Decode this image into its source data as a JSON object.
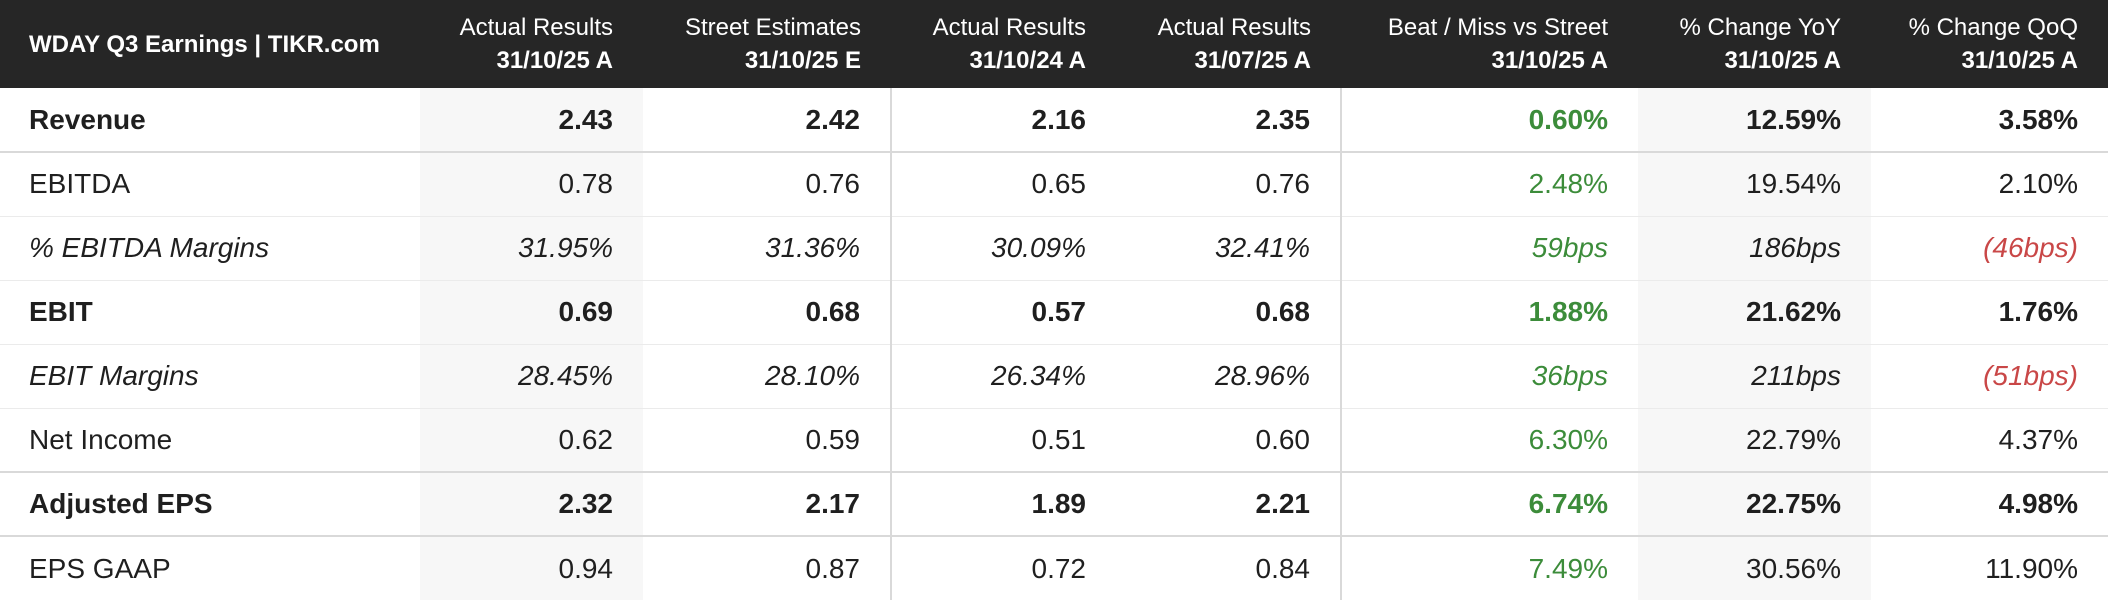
{
  "table": {
    "title": "WDAY Q3 Earnings | TIKR.com",
    "columns": [
      {
        "line1": "Actual Results",
        "line2": "31/10/25 A"
      },
      {
        "line1": "Street Estimates",
        "line2": "31/10/25 E"
      },
      {
        "line1": "Actual Results",
        "line2": "31/10/24 A"
      },
      {
        "line1": "Actual Results",
        "line2": "31/07/25 A"
      },
      {
        "line1": "Beat / Miss vs Street",
        "line2": "31/10/25 A"
      },
      {
        "line1": "% Change YoY",
        "line2": "31/10/25 A"
      },
      {
        "line1": "% Change QoQ",
        "line2": "31/10/25 A"
      }
    ],
    "rows": [
      {
        "label": "Revenue",
        "values": [
          "2.43",
          "2.42",
          "2.16",
          "2.35",
          "0.60%",
          "12.59%",
          "3.58%"
        ]
      },
      {
        "label": "EBITDA",
        "values": [
          "0.78",
          "0.76",
          "0.65",
          "0.76",
          "2.48%",
          "19.54%",
          "2.10%"
        ]
      },
      {
        "label": "% EBITDA Margins",
        "values": [
          "31.95%",
          "31.36%",
          "30.09%",
          "32.41%",
          "59bps",
          "186bps",
          "(46bps)"
        ]
      },
      {
        "label": "EBIT",
        "values": [
          "0.69",
          "0.68",
          "0.57",
          "0.68",
          "1.88%",
          "21.62%",
          "1.76%"
        ]
      },
      {
        "label": "EBIT Margins",
        "values": [
          "28.45%",
          "28.10%",
          "26.34%",
          "28.96%",
          "36bps",
          "211bps",
          "(51bps)"
        ]
      },
      {
        "label": "Net Income",
        "values": [
          "0.62",
          "0.59",
          "0.51",
          "0.60",
          "6.30%",
          "22.79%",
          "4.37%"
        ]
      },
      {
        "label": "Adjusted EPS",
        "values": [
          "2.32",
          "2.17",
          "1.89",
          "2.21",
          "6.74%",
          "22.75%",
          "4.98%"
        ]
      },
      {
        "label": "EPS GAAP",
        "values": [
          "0.94",
          "0.87",
          "0.72",
          "0.84",
          "7.49%",
          "30.56%",
          "11.90%"
        ]
      }
    ]
  },
  "colors": {
    "header_bg": "#262626",
    "positive": "#3c8c3a",
    "negative": "#c94747",
    "shade": "#f7f7f7"
  }
}
